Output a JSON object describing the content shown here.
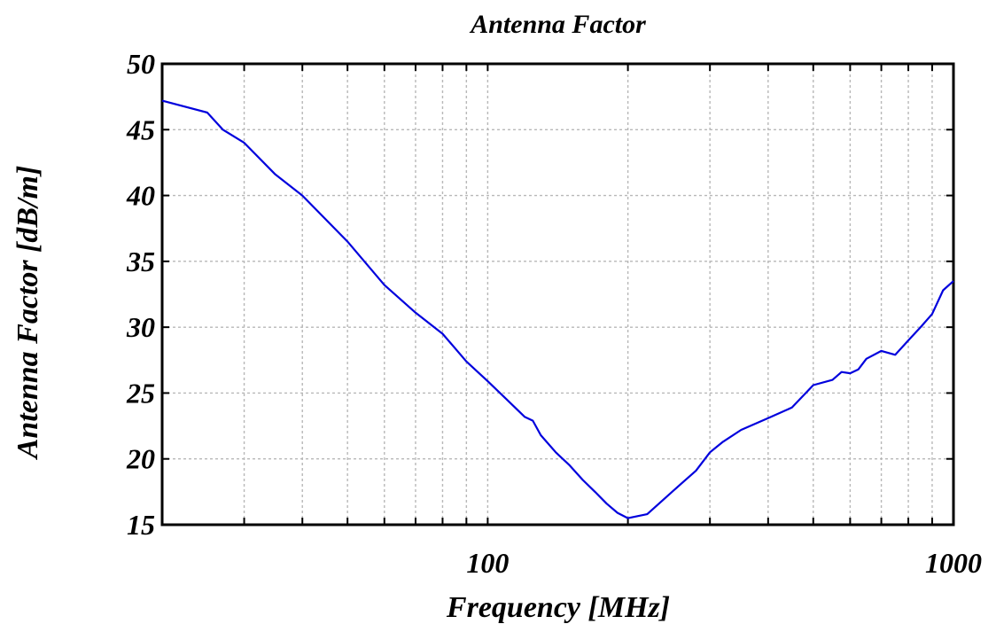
{
  "chart_data": {
    "type": "line",
    "title": "Antenna Factor",
    "xlabel": "Frequency [MHz]",
    "ylabel": "Antenna Factor [dB/m]",
    "xscale": "log",
    "xlim": [
      20,
      1000
    ],
    "ylim": [
      15,
      50
    ],
    "xticks": [
      100,
      1000
    ],
    "xtick_labels": [
      "100",
      "1000"
    ],
    "yticks": [
      15,
      20,
      25,
      30,
      35,
      40,
      45,
      50
    ],
    "ytick_labels": [
      "15",
      "20",
      "25",
      "30",
      "35",
      "40",
      "45",
      "50"
    ],
    "grid": true,
    "legend": "none",
    "series_color": "#0000dd",
    "series": [
      {
        "x": [
          20,
          25,
          27,
          30,
          35,
          40,
          50,
          60,
          70,
          80,
          90,
          100,
          110,
          120,
          125,
          130,
          140,
          150,
          160,
          170,
          180,
          190,
          200,
          220,
          240,
          260,
          280,
          300,
          320,
          350,
          400,
          450,
          500,
          550,
          575,
          600,
          625,
          650,
          700,
          750,
          800,
          850,
          900,
          950,
          1000
        ],
        "y": [
          47.2,
          46.3,
          45.0,
          44.0,
          41.6,
          40.0,
          36.5,
          33.2,
          31.1,
          29.5,
          27.4,
          25.9,
          24.5,
          23.2,
          22.9,
          21.8,
          20.5,
          19.5,
          18.4,
          17.5,
          16.6,
          15.9,
          15.5,
          15.8,
          17.0,
          18.1,
          19.1,
          20.5,
          21.3,
          22.2,
          23.1,
          23.9,
          25.6,
          26.0,
          26.6,
          26.5,
          26.8,
          27.6,
          28.2,
          27.9,
          29.0,
          30.0,
          31.0,
          32.8,
          33.5
        ]
      }
    ]
  }
}
